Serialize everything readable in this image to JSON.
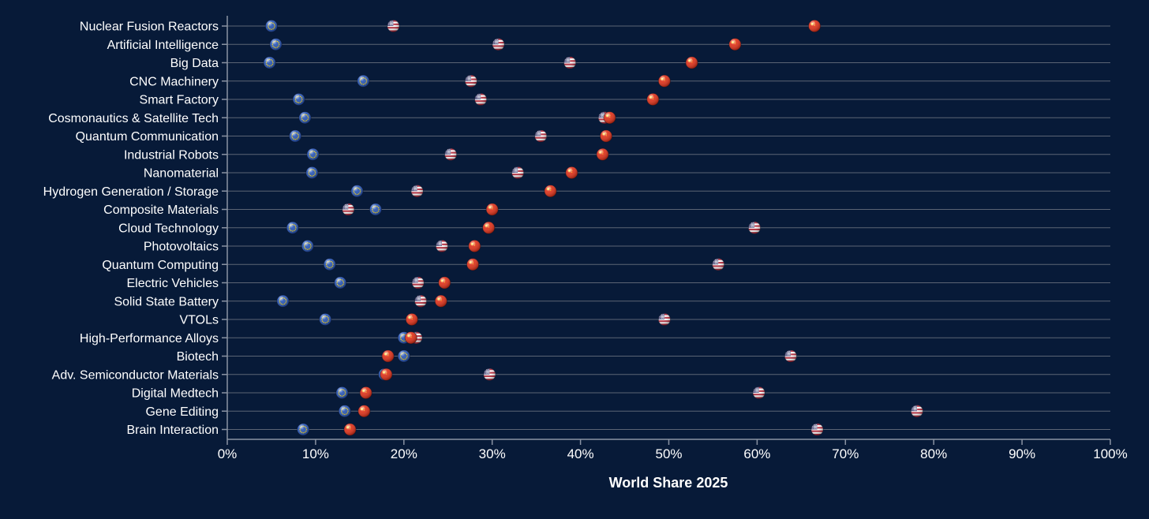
{
  "chart_data": {
    "type": "scatter",
    "xlabel": "World Share 2025",
    "ylabel": "",
    "xlim": [
      0,
      100
    ],
    "x_ticks": [
      "0%",
      "10%",
      "20%",
      "30%",
      "40%",
      "50%",
      "60%",
      "70%",
      "80%",
      "90%",
      "100%"
    ],
    "grid": "horizontal",
    "categories": [
      "Nuclear Fusion Reactors",
      "Artificial Intelligence",
      "Big Data",
      "CNC Machinery",
      "Smart Factory",
      "Cosmonautics & Satellite Tech",
      "Quantum Communication",
      "Industrial Robots",
      "Nanomaterial",
      "Hydrogen Generation / Storage",
      "Composite Materials",
      "Cloud Technology",
      "Photovoltaics",
      "Quantum Computing",
      "Electric Vehicles",
      "Solid State Battery",
      "VTOLs",
      "High-Performance Alloys",
      "Biotech",
      "Adv. Semiconductor Materials",
      "Digital Medtech",
      "Gene Editing",
      "Brain Interaction"
    ],
    "series": [
      {
        "name": "EU",
        "marker": "eu-flag",
        "color": "#1f4fb4",
        "values": [
          5.0,
          5.5,
          4.8,
          15.4,
          8.1,
          8.8,
          7.7,
          9.7,
          9.6,
          14.7,
          16.8,
          7.4,
          9.1,
          11.6,
          12.8,
          6.3,
          11.1,
          20.0,
          20.0,
          17.8,
          13.0,
          13.3,
          8.6
        ]
      },
      {
        "name": "USA",
        "marker": "us-flag",
        "color": "#b22234",
        "values": [
          18.8,
          30.7,
          38.8,
          27.6,
          28.7,
          42.7,
          35.5,
          25.3,
          32.9,
          21.5,
          13.7,
          59.7,
          24.3,
          55.6,
          21.6,
          21.9,
          49.5,
          21.4,
          63.8,
          29.7,
          60.2,
          78.1,
          66.8
        ]
      },
      {
        "name": "China",
        "marker": "cn-flag",
        "color": "#de2910",
        "values": [
          66.5,
          57.5,
          52.6,
          49.5,
          48.2,
          43.3,
          42.9,
          42.5,
          39.0,
          36.6,
          30.0,
          29.6,
          28.0,
          27.8,
          24.6,
          24.2,
          20.9,
          20.8,
          18.2,
          18.0,
          15.7,
          15.5,
          13.9
        ]
      }
    ]
  },
  "colors": {
    "background": "#071a38",
    "axis": "#8a93a3",
    "gridline": "#5b6474",
    "text": "#ffffff"
  }
}
